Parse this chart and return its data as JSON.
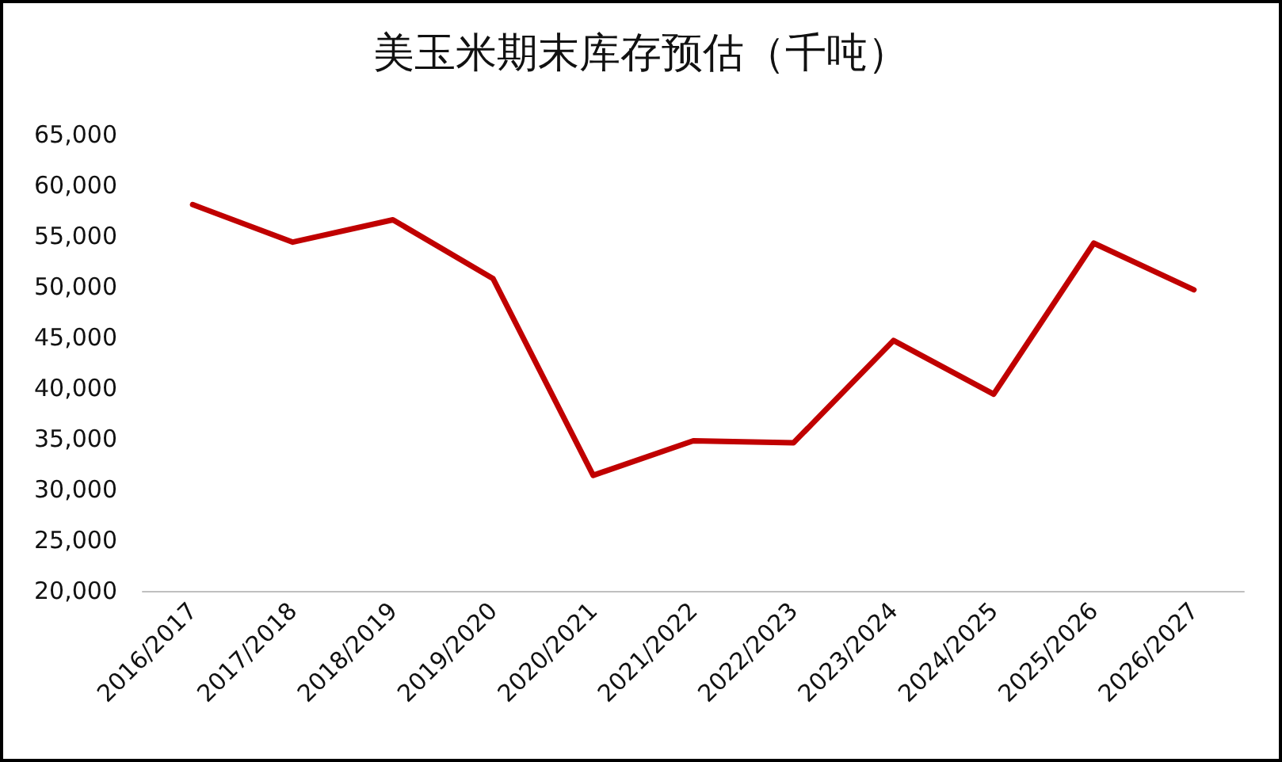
{
  "chart_data": {
    "type": "line",
    "title": "美玉米期末库存预估（千吨）",
    "categories": [
      "2016/2017",
      "2017/2018",
      "2018/2019",
      "2019/2020",
      "2020/2021",
      "2021/2022",
      "2022/2023",
      "2023/2024",
      "2024/2025",
      "2025/2026",
      "2026/2027"
    ],
    "values": [
      58100,
      54400,
      56600,
      50800,
      31400,
      34800,
      34600,
      44700,
      39400,
      54300,
      49700
    ],
    "color": "#c00000",
    "ylim": [
      20000,
      65000
    ],
    "yticks": [
      {
        "value": 20000,
        "label": "20,000"
      },
      {
        "value": 25000,
        "label": "25,000"
      },
      {
        "value": 30000,
        "label": "30,000"
      },
      {
        "value": 35000,
        "label": "35,000"
      },
      {
        "value": 40000,
        "label": "40,000"
      },
      {
        "value": 45000,
        "label": "45,000"
      },
      {
        "value": 50000,
        "label": "50,000"
      },
      {
        "value": 55000,
        "label": "55,000"
      },
      {
        "value": 60000,
        "label": "60,000"
      },
      {
        "value": 65000,
        "label": "65,000"
      }
    ],
    "grid": false,
    "marker": "none",
    "line_style": "solid"
  }
}
